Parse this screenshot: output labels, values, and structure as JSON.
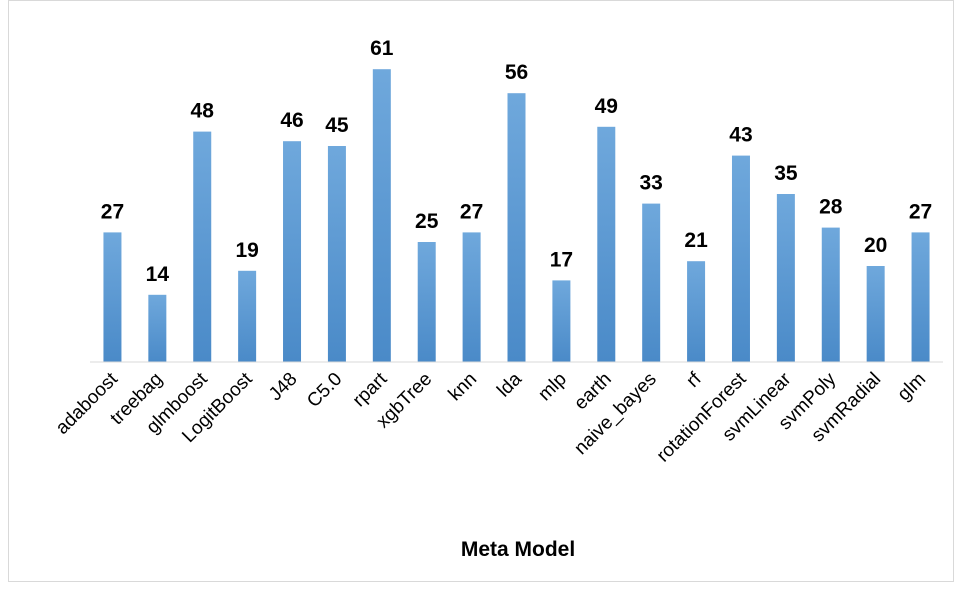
{
  "chart_data": {
    "type": "bar",
    "title": "",
    "xlabel": "Meta Model",
    "ylabel": "",
    "ylim": [
      0,
      65
    ],
    "grid": false,
    "legend": "none",
    "categories": [
      "adaboost",
      "treebag",
      "glmboost",
      "LogitBoost",
      "J48",
      "C5.0",
      "rpart",
      "xgbTree",
      "knn",
      "lda",
      "mlp",
      "earth",
      "naive_bayes",
      "rf",
      "rotationForest",
      "svmLinear",
      "svmPoly",
      "svmRadial",
      "glm"
    ],
    "values": [
      27,
      14,
      48,
      19,
      46,
      45,
      61,
      25,
      27,
      56,
      17,
      49,
      33,
      21,
      43,
      35,
      28,
      20,
      27
    ],
    "data_labels": [
      "27",
      "14",
      "48",
      "19",
      "46",
      "45",
      "61",
      "25",
      "27",
      "56",
      "17",
      "49",
      "33",
      "21",
      "43",
      "35",
      "28",
      "20",
      "27"
    ],
    "bar_color": "#5B9BD5"
  }
}
